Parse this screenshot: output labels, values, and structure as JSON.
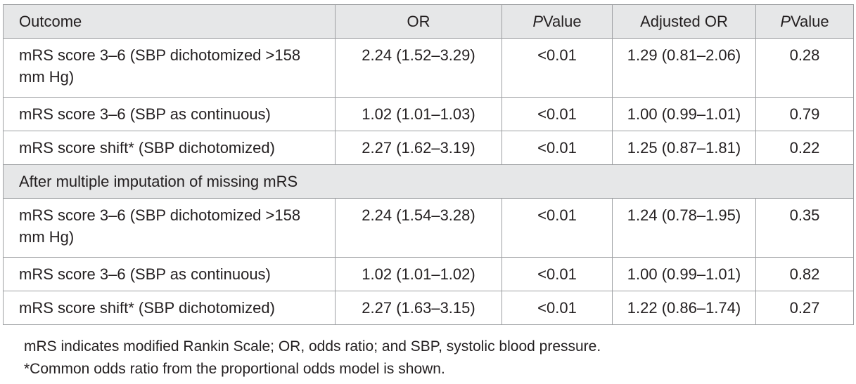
{
  "table": {
    "headers": {
      "outcome": "Outcome",
      "or": "OR",
      "p_italic": "P",
      "p_rest": "Value",
      "adjusted_or": "Adjusted OR",
      "p2_italic": "P",
      "p2_rest": "Value"
    },
    "rows": [
      {
        "outcome": "mRS score 3–6 (SBP dichotomized >158 mm Hg)",
        "or": "2.24 (1.52–3.29)",
        "p": "<0.01",
        "adj_or": "1.29 (0.81–2.06)",
        "p_adj": "0.28"
      },
      {
        "outcome": "mRS score 3–6 (SBP as continuous)",
        "or": "1.02 (1.01–1.03)",
        "p": "<0.01",
        "adj_or": "1.00 (0.99–1.01)",
        "p_adj": "0.79"
      },
      {
        "outcome": "mRS score shift* (SBP dichotomized)",
        "or": "2.27 (1.62–3.19)",
        "p": "<0.01",
        "adj_or": "1.25 (0.87–1.81)",
        "p_adj": "0.22"
      }
    ],
    "section_label": "After multiple imputation of missing mRS",
    "rows_imputed": [
      {
        "outcome": "mRS score 3–6 (SBP dichotomized >158 mm Hg)",
        "or": "2.24 (1.54–3.28)",
        "p": "<0.01",
        "adj_or": "1.24 (0.78–1.95)",
        "p_adj": "0.35"
      },
      {
        "outcome": "mRS score 3–6 (SBP as continuous)",
        "or": "1.02 (1.01–1.02)",
        "p": "<0.01",
        "adj_or": "1.00 (0.99–1.01)",
        "p_adj": "0.82"
      },
      {
        "outcome": "mRS score shift* (SBP dichotomized)",
        "or": "2.27 (1.63–3.15)",
        "p": "<0.01",
        "adj_or": "1.22 (0.86–1.74)",
        "p_adj": "0.27"
      }
    ]
  },
  "footnotes": {
    "abbreviations": "mRS indicates modified Rankin Scale; OR, odds ratio; and SBP, systolic blood pressure.",
    "asterisk": "*Common odds ratio from the proportional odds model is shown."
  },
  "colors": {
    "header_bg": "#e6e7e8",
    "border": "#9d9fa2",
    "text": "#231f20"
  }
}
